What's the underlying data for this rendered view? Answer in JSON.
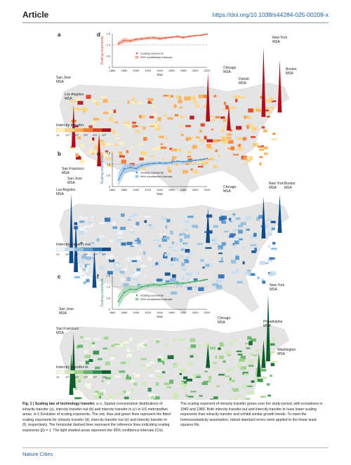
{
  "header": {
    "section": "Article",
    "doi": "https://doi.org/10.1038/s44284-025-00209-x"
  },
  "footer": {
    "journal": "Nature Cities"
  },
  "panels": [
    {
      "letter": "a",
      "chart_letter": "d",
      "color": "#d9482b",
      "light": "#f3b9a6",
      "legend_title": "Intercity transfer",
      "legend_ticks": [
        "10",
        "10¹",
        "10²",
        "10³",
        "10⁴",
        "10⁵"
      ],
      "legend_colors": [
        "#fff0b8",
        "#fdd47d",
        "#fcae54",
        "#f47a2e",
        "#de3c1f",
        "#b00d1c"
      ],
      "labels": [
        "San Jose MSA",
        "Los Angeles MSA",
        "Chicago MSA",
        "Detroit MSA",
        "New York MSA",
        "Boston MSA"
      ]
    },
    {
      "letter": "b",
      "chart_letter": "e",
      "color": "#2f7fc1",
      "light": "#a9cce8",
      "legend_title": "Intercity transfer-out",
      "legend_ticks": [
        "10",
        "10¹",
        "10²",
        "10³",
        "10⁴",
        "10⁵"
      ],
      "legend_colors": [
        "#eef5fb",
        "#c4dcef",
        "#8fbde0",
        "#5498cc",
        "#2a6fb0",
        "#0d4a8a"
      ],
      "labels": [
        "San Francisco MSA",
        "San Jose MSA",
        "Los Angeles MSA",
        "Chicago MSA",
        "New York MSA",
        "Boston MSA"
      ]
    },
    {
      "letter": "c",
      "chart_letter": "f",
      "color": "#2f9a55",
      "light": "#a7d8b6",
      "legend_title": "Intercity transfer-in",
      "legend_ticks": [
        "10",
        "10¹",
        "10²",
        "10³",
        "10⁴",
        "10⁵"
      ],
      "legend_colors": [
        "#f1f9e8",
        "#cfeab6",
        "#9ed48a",
        "#5fb466",
        "#2c8c48",
        "#0c5e2c"
      ],
      "labels": [
        "San Jose MSA",
        "San Francisco MSA",
        "Chicago MSA",
        "Philadelphia MSA",
        "New York MSA",
        "Washington MSA"
      ]
    }
  ],
  "chart_data": [
    {
      "type": "line",
      "panel": "d",
      "ylabel": "Scaling exponents",
      "xlabel": "Year",
      "ylim": [
        0,
        1.5
      ],
      "yticks": [
        "0",
        "0.5",
        "1.0",
        "1.5"
      ],
      "xlim": [
        1860,
        2020
      ],
      "xticks": [
        "1860",
        "1880",
        "1900",
        "1920",
        "1940",
        "1960",
        "1980",
        "2000",
        "2020"
      ],
      "reference_line": 1.0,
      "legend": [
        "Scaling exponents",
        "95% confidential intervals"
      ],
      "series": [
        {
          "name": "Scaling exponents",
          "x": [
            1870,
            1880,
            1890,
            1900,
            1910,
            1920,
            1930,
            1940,
            1950,
            1960,
            1970,
            1980,
            1990,
            2000,
            2010,
            2015,
            2020
          ],
          "y": [
            1.05,
            1.2,
            1.18,
            1.24,
            1.27,
            1.3,
            1.32,
            1.28,
            1.31,
            1.34,
            1.37,
            1.33,
            1.38,
            1.41,
            1.43,
            1.46,
            1.48
          ],
          "ci_low": [
            0.95,
            1.08,
            1.1,
            1.16,
            1.2,
            1.23,
            1.25,
            1.2,
            1.25,
            1.29,
            1.31,
            1.27,
            1.33,
            1.37,
            1.39,
            1.42,
            1.44
          ],
          "ci_high": [
            1.15,
            1.32,
            1.26,
            1.32,
            1.34,
            1.37,
            1.39,
            1.36,
            1.37,
            1.39,
            1.43,
            1.39,
            1.43,
            1.45,
            1.47,
            1.5,
            1.52
          ]
        }
      ]
    },
    {
      "type": "line",
      "panel": "e",
      "ylabel": "Scaling exponents",
      "xlabel": "Year",
      "ylim": [
        0,
        1.5
      ],
      "yticks": [
        "0",
        "0.5",
        "1.0",
        "1.5"
      ],
      "xlim": [
        1860,
        2020
      ],
      "xticks": [
        "1860",
        "1880",
        "1900",
        "1920",
        "1940",
        "1960",
        "1980",
        "2000",
        "2020"
      ],
      "reference_line": 1.0,
      "legend": [
        "Scaling exponents",
        "95% confidential intervals"
      ],
      "series": [
        {
          "name": "Scaling exponents",
          "x": [
            1870,
            1880,
            1890,
            1900,
            1910,
            1920,
            1930,
            1940,
            1950,
            1960,
            1970,
            1980,
            1990,
            2000,
            2010,
            2015,
            2020
          ],
          "y": [
            0.3,
            0.78,
            0.85,
            0.8,
            0.95,
            1.0,
            1.03,
            1.05,
            1.04,
            1.08,
            1.12,
            1.1,
            1.14,
            1.17,
            1.2,
            1.22,
            1.25
          ],
          "ci_low": [
            0.0,
            0.55,
            0.68,
            0.65,
            0.84,
            0.9,
            0.94,
            0.97,
            0.97,
            1.02,
            1.06,
            1.04,
            1.09,
            1.13,
            1.16,
            1.18,
            1.21
          ],
          "ci_high": [
            0.6,
            1.0,
            1.02,
            0.95,
            1.06,
            1.1,
            1.12,
            1.13,
            1.11,
            1.14,
            1.18,
            1.16,
            1.19,
            1.21,
            1.24,
            1.26,
            1.29
          ]
        }
      ]
    },
    {
      "type": "line",
      "panel": "f",
      "ylabel": "Scaling exponents",
      "xlabel": "Year",
      "ylim": [
        0,
        1.5
      ],
      "yticks": [
        "0",
        "0.5",
        "1.0",
        "1.5"
      ],
      "xlim": [
        1860,
        2020
      ],
      "xticks": [
        "1860",
        "1880",
        "1900",
        "1920",
        "1940",
        "1960",
        "1980",
        "2000",
        "2020"
      ],
      "reference_line": 1.0,
      "legend": [
        "Scaling exponents",
        "95% confidential intervals"
      ],
      "series": [
        {
          "name": "Scaling exponents",
          "x": [
            1870,
            1880,
            1890,
            1900,
            1910,
            1920,
            1930,
            1940,
            1950,
            1960,
            1970,
            1980,
            1990,
            2000,
            2010,
            2015,
            2020
          ],
          "y": [
            0.35,
            0.75,
            0.9,
            0.88,
            1.0,
            1.05,
            1.1,
            1.08,
            1.12,
            1.15,
            1.17,
            1.16,
            1.2,
            1.24,
            1.28,
            1.31,
            1.33
          ],
          "ci_low": [
            0.05,
            0.52,
            0.72,
            0.72,
            0.88,
            0.95,
            1.01,
            0.99,
            1.05,
            1.09,
            1.11,
            1.1,
            1.15,
            1.2,
            1.24,
            1.27,
            1.29
          ],
          "ci_high": [
            0.65,
            0.98,
            1.08,
            1.04,
            1.12,
            1.15,
            1.19,
            1.17,
            1.19,
            1.21,
            1.23,
            1.22,
            1.25,
            1.28,
            1.32,
            1.35,
            1.37
          ]
        }
      ]
    }
  ],
  "caption": {
    "fig_label": "Fig. 1 | Scaling law of technology transfer.",
    "text_col1": " a–c, Spatial concentration distributions of intracity transfer (a), intercity transfer-out (b) and intercity transfer-in (c) in US metropolitan areas. d–f, Evolution of scaling exponents. The red, blue and green lines represent the fitted scaling exponents for intracity transfer (d), intercity transfer-out (e) and intercity transfer-in (f), respectively. The horizontal dashed lines represent the reference lines indicating scaling",
    "text_col2": "exponents (β) = 1. The light shaded areas represent the 95% confidence intervals (CIs). The scaling exponent of intracity transfer grows over the study period, with exceptions in 1940 and 1980. Both intercity transfer-out and intercity transfer-in have lower scaling exponents than intracity transfer and exhibit similar growth trends. To meet the homoscedasticity assumption, robust standard errors were applied to the linear least-squares fits."
  }
}
